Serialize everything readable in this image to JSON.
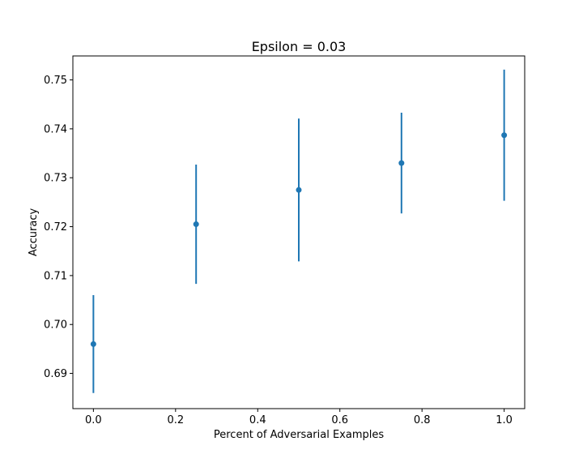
{
  "chart_data": {
    "type": "errorbar",
    "title": "Epsilon = 0.03",
    "xlabel": "Percent of Adversarial Examples",
    "ylabel": "Accuracy",
    "xlim": [
      -0.05,
      1.05
    ],
    "ylim": [
      0.6828,
      0.7549
    ],
    "xticks": [
      0.0,
      0.2,
      0.4,
      0.6,
      0.8,
      1.0
    ],
    "xtick_labels": [
      "0.0",
      "0.2",
      "0.4",
      "0.6",
      "0.8",
      "1.0"
    ],
    "yticks": [
      0.69,
      0.7,
      0.71,
      0.72,
      0.73,
      0.74,
      0.75
    ],
    "ytick_labels": [
      "0.69",
      "0.70",
      "0.71",
      "0.72",
      "0.73",
      "0.74",
      "0.75"
    ],
    "grid": false,
    "color": "#1f77b4",
    "series": [
      {
        "x": [
          0.0,
          0.25,
          0.5,
          0.75,
          1.0
        ],
        "y": [
          0.696,
          0.7205,
          0.7275,
          0.733,
          0.7387
        ],
        "yerr": [
          0.01,
          0.0122,
          0.0146,
          0.0103,
          0.0134
        ]
      }
    ]
  }
}
